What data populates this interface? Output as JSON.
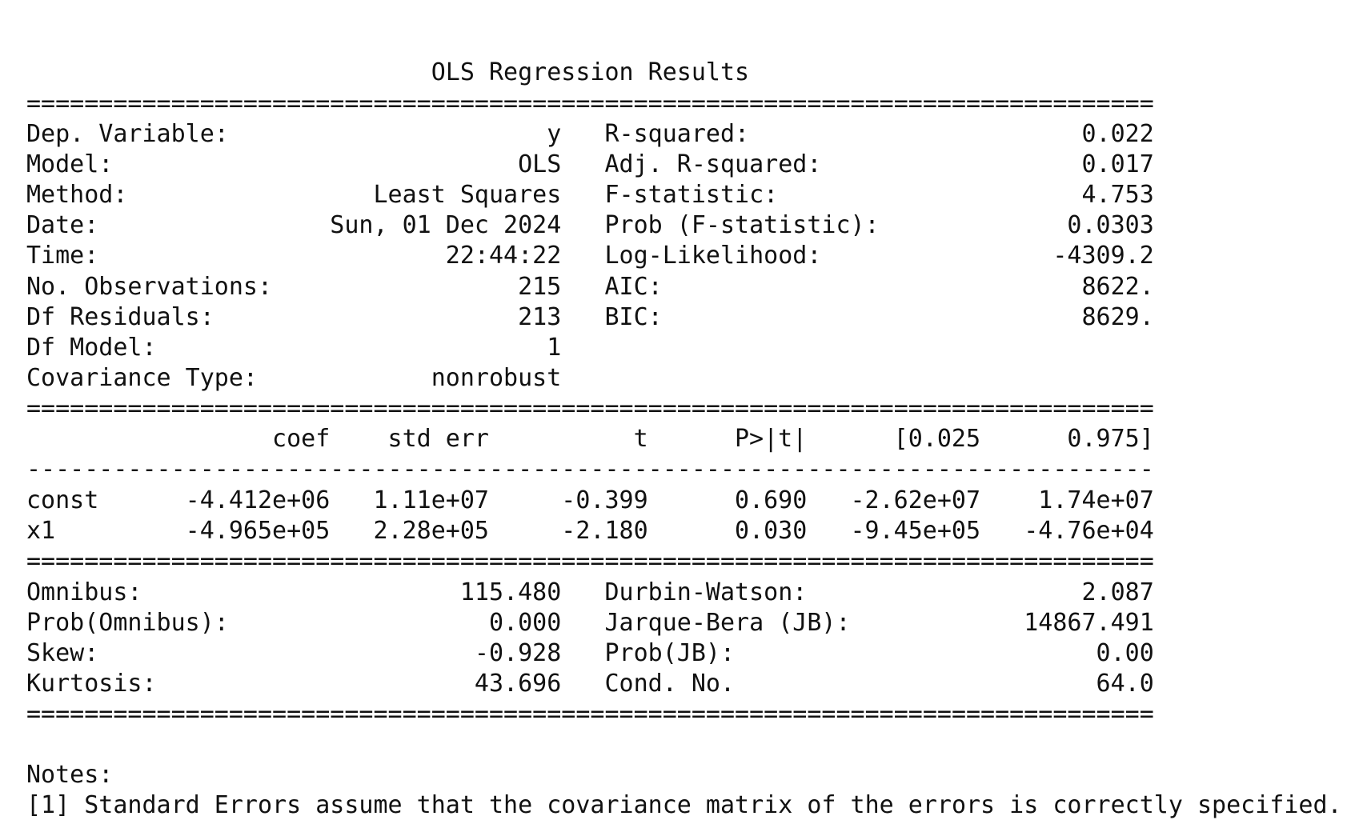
{
  "title": "OLS Regression Results",
  "rule_double": "==============================================================================",
  "rule_single": "------------------------------------------------------------------------------",
  "summary_top": [
    [
      "Dep. Variable:",
      "y",
      "R-squared:",
      "0.022"
    ],
    [
      "Model:",
      "OLS",
      "Adj. R-squared:",
      "0.017"
    ],
    [
      "Method:",
      "Least Squares",
      "F-statistic:",
      "4.753"
    ],
    [
      "Date:",
      "Sun, 01 Dec 2024",
      "Prob (F-statistic):",
      "0.0303"
    ],
    [
      "Time:",
      "22:44:22",
      "Log-Likelihood:",
      "-4309.2"
    ],
    [
      "No. Observations:",
      "215",
      "AIC:",
      "8622."
    ],
    [
      "Df Residuals:",
      "213",
      "BIC:",
      "8629."
    ],
    [
      "Df Model:",
      "1"
    ],
    [
      "Covariance Type:",
      "nonrobust"
    ]
  ],
  "coef_table": {
    "header": [
      "coef",
      "std err",
      "t",
      "P>|t|",
      "[0.025",
      "0.975]"
    ],
    "rows": [
      [
        "const",
        "-4.412e+06",
        "1.11e+07",
        "-0.399",
        "0.690",
        "-2.62e+07",
        "1.74e+07"
      ],
      [
        "x1",
        "-4.965e+05",
        "2.28e+05",
        "-2.180",
        "0.030",
        "-9.45e+05",
        "-4.76e+04"
      ]
    ]
  },
  "summary_bottom": [
    [
      "Omnibus:",
      "115.480",
      "Durbin-Watson:",
      "2.087"
    ],
    [
      "Prob(Omnibus):",
      "0.000",
      "Jarque-Bera (JB):",
      "14867.491"
    ],
    [
      "Skew:",
      "-0.928",
      "Prob(JB):",
      "0.00"
    ],
    [
      "Kurtosis:",
      "43.696",
      "Cond. No.",
      "64.0"
    ]
  ],
  "notes": {
    "heading": "Notes:",
    "items": [
      "[1] Standard Errors assume that the covariance matrix of the errors is correctly specified."
    ]
  }
}
